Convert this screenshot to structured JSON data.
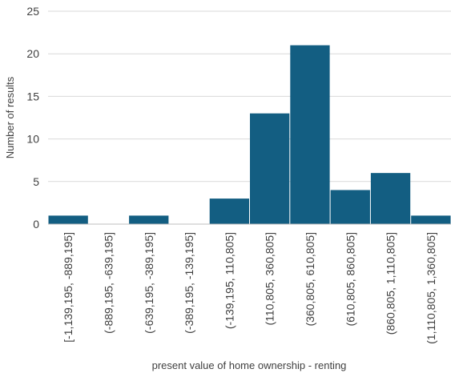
{
  "chart_data": {
    "type": "bar",
    "categories": [
      "[-1,139,195, -889,195]",
      "(-889,195, -639,195]",
      "(-639,195, -389,195]",
      "(-389,195, -139,195]",
      "(-139,195, 110,805]",
      "(110,805, 360,805]",
      "(360,805, 610,805]",
      "(610,805, 860,805]",
      "(860,805, 1,110,805]",
      "(1,110,805, 1,360,805]"
    ],
    "values": [
      1,
      0,
      1,
      0,
      3,
      13,
      21,
      4,
      6,
      1
    ],
    "xlabel": "present value of home ownership - renting",
    "ylabel": "Number of results",
    "ylim": [
      0,
      25
    ],
    "yticks": [
      "0",
      "5",
      "10",
      "15",
      "20",
      "25"
    ],
    "bar_color": "#135e82",
    "grid": true
  }
}
